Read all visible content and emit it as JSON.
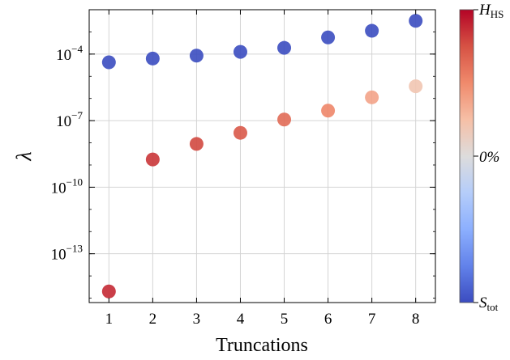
{
  "chart_data": {
    "type": "scatter",
    "xlabel": "Truncations",
    "ylabel": "λ",
    "yscale": "log",
    "x_ticks": [
      1,
      2,
      3,
      4,
      5,
      6,
      7,
      8
    ],
    "y_ticks": [
      {
        "exp": -4,
        "base": "10",
        "sup": "−4"
      },
      {
        "exp": -7,
        "base": "10",
        "sup": "−7"
      },
      {
        "exp": -10,
        "base": "10",
        "sup": "−10"
      },
      {
        "exp": -13,
        "base": "10",
        "sup": "−13"
      }
    ],
    "xlim": [
      0.55,
      8.45
    ],
    "ylim_log10": [
      -15.2,
      -2.0
    ],
    "grid": true,
    "series": [
      {
        "points": [
          {
            "x": 1,
            "y_log10": -4.37
          },
          {
            "x": 2,
            "y_log10": -4.2
          },
          {
            "x": 3,
            "y_log10": -4.07
          },
          {
            "x": 4,
            "y_log10": -3.9
          },
          {
            "x": 5,
            "y_log10": -3.72
          },
          {
            "x": 6,
            "y_log10": -3.25
          },
          {
            "x": 7,
            "y_log10": -2.95
          },
          {
            "x": 8,
            "y_log10": -2.5
          }
        ],
        "color_value": -1.0
      },
      {
        "points": [
          {
            "x": 1,
            "y_log10": -14.7
          },
          {
            "x": 2,
            "y_log10": -8.75
          },
          {
            "x": 3,
            "y_log10": -8.05
          },
          {
            "x": 4,
            "y_log10": -7.55
          },
          {
            "x": 5,
            "y_log10": -6.95
          },
          {
            "x": 6,
            "y_log10": -6.55
          },
          {
            "x": 7,
            "y_log10": -5.95
          },
          {
            "x": 8,
            "y_log10": -5.45
          }
        ],
        "color_values": [
          0.88,
          0.84,
          0.78,
          0.72,
          0.64,
          0.52,
          0.38,
          0.2
        ]
      }
    ],
    "colorbar": {
      "cmap": "coolwarm",
      "top_label": "H",
      "top_label_sub": "HS",
      "mid_label": "0%",
      "bottom_label": "S",
      "bottom_label_sub": "tot",
      "color_top": "#b40426",
      "color_mid": "#dddcdc",
      "color_bottom": "#3b4cc0"
    }
  }
}
